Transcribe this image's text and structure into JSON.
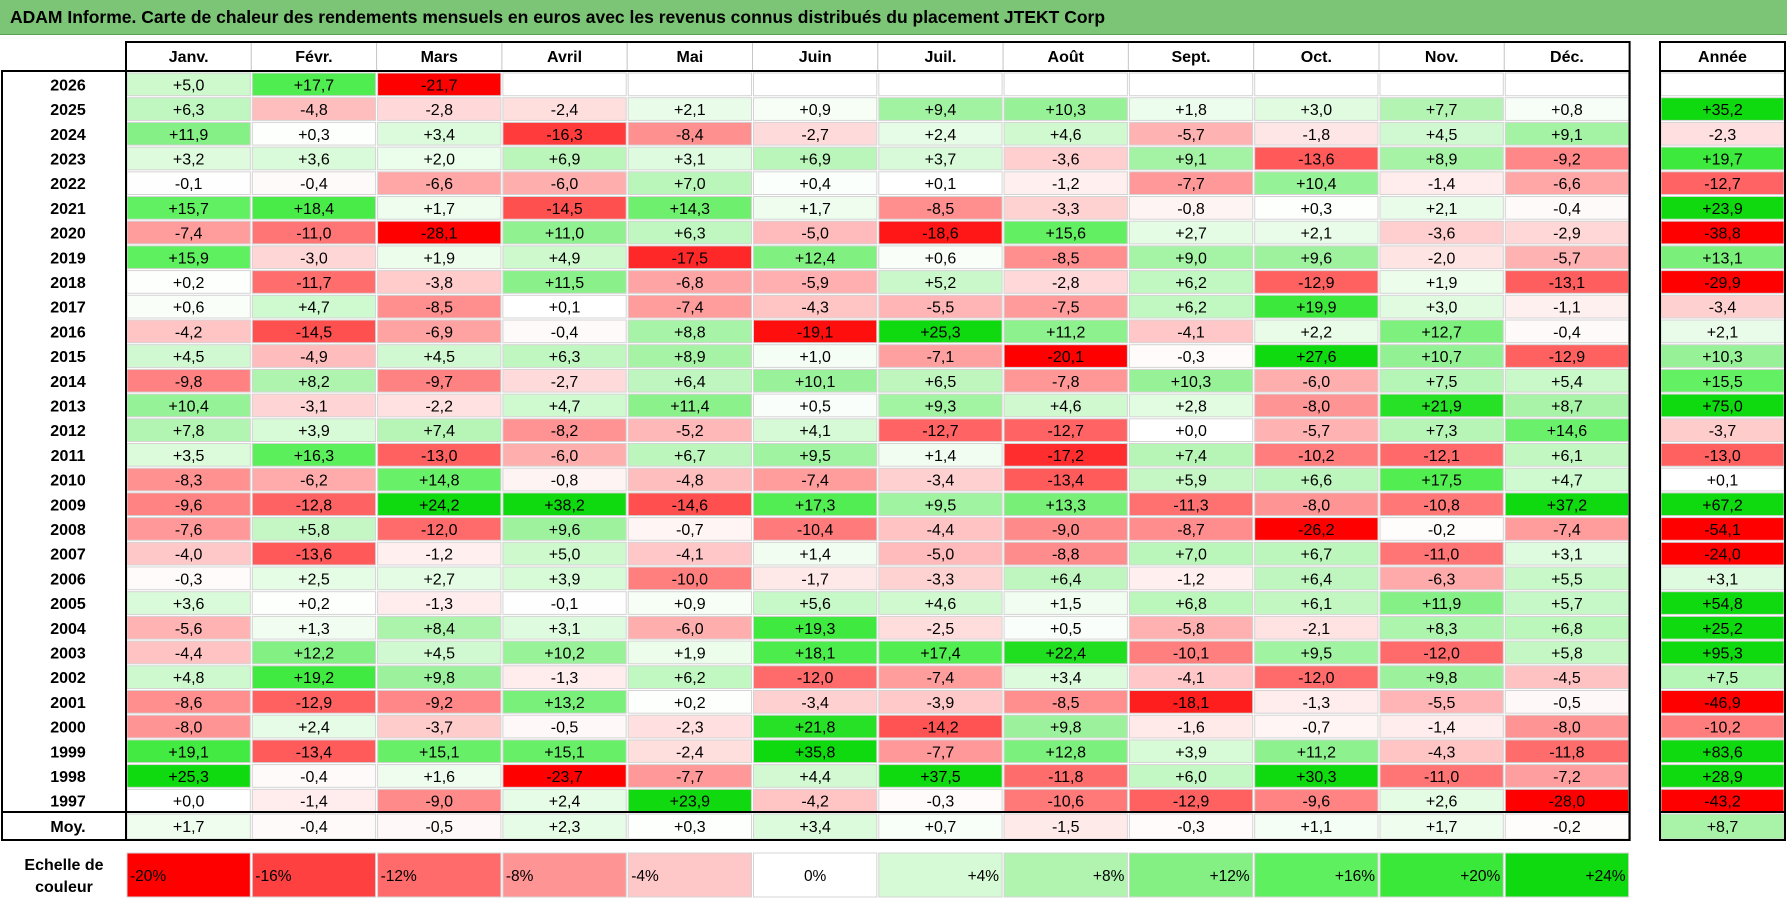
{
  "title": "ADAM Informe. Carte de chaleur des rendements mensuels en euros avec les revenus connus distribués du placement JTEKT Corp",
  "chart_data": {
    "type": "heatmap",
    "title": "ADAM Informe. Carte de chaleur des rendements mensuels en euros avec les revenus connus distribués du placement JTEKT Corp",
    "columns": [
      "Janv.",
      "Févr.",
      "Mars",
      "Avril",
      "Mai",
      "Juin",
      "Juil.",
      "Août",
      "Sept.",
      "Oct.",
      "Nov.",
      "Déc."
    ],
    "annual_header": "Année",
    "rows": [
      {
        "year": "2026",
        "values": [
          "+5,0",
          "+17,7",
          "-21,7",
          "",
          "",
          "",
          "",
          "",
          "",
          "",
          "",
          ""
        ],
        "annual": ""
      },
      {
        "year": "2025",
        "values": [
          "+6,3",
          "-4,8",
          "-2,8",
          "-2,4",
          "+2,1",
          "+0,9",
          "+9,4",
          "+10,3",
          "+1,8",
          "+3,0",
          "+7,7",
          "+0,8"
        ],
        "annual": "+35,2"
      },
      {
        "year": "2024",
        "values": [
          "+11,9",
          "+0,3",
          "+3,4",
          "-16,3",
          "-8,4",
          "-2,7",
          "+2,4",
          "+4,6",
          "-5,7",
          "-1,8",
          "+4,5",
          "+9,1"
        ],
        "annual": "-2,3"
      },
      {
        "year": "2023",
        "values": [
          "+3,2",
          "+3,6",
          "+2,0",
          "+6,9",
          "+3,1",
          "+6,9",
          "+3,7",
          "-3,6",
          "+9,1",
          "-13,6",
          "+8,9",
          "-9,2"
        ],
        "annual": "+19,7"
      },
      {
        "year": "2022",
        "values": [
          "-0,1",
          "-0,4",
          "-6,6",
          "-6,0",
          "+7,0",
          "+0,4",
          "+0,1",
          "-1,2",
          "-7,7",
          "+10,4",
          "-1,4",
          "-6,6"
        ],
        "annual": "-12,7"
      },
      {
        "year": "2021",
        "values": [
          "+15,7",
          "+18,4",
          "+1,7",
          "-14,5",
          "+14,3",
          "+1,7",
          "-8,5",
          "-3,3",
          "-0,8",
          "+0,3",
          "+2,1",
          "-0,4"
        ],
        "annual": "+23,9"
      },
      {
        "year": "2020",
        "values": [
          "-7,4",
          "-11,0",
          "-28,1",
          "+11,0",
          "+6,3",
          "-5,0",
          "-18,6",
          "+15,6",
          "+2,7",
          "+2,1",
          "-3,6",
          "-2,9"
        ],
        "annual": "-38,8"
      },
      {
        "year": "2019",
        "values": [
          "+15,9",
          "-3,0",
          "+1,9",
          "+4,9",
          "-17,5",
          "+12,4",
          "+0,6",
          "-8,5",
          "+9,0",
          "+9,6",
          "-2,0",
          "-5,7"
        ],
        "annual": "+13,1"
      },
      {
        "year": "2018",
        "values": [
          "+0,2",
          "-11,7",
          "-3,8",
          "+11,5",
          "-6,8",
          "-5,9",
          "+5,2",
          "-2,8",
          "+6,2",
          "-12,9",
          "+1,9",
          "-13,1"
        ],
        "annual": "-29,9"
      },
      {
        "year": "2017",
        "values": [
          "+0,6",
          "+4,7",
          "-8,5",
          "+0,1",
          "-7,4",
          "-4,3",
          "-5,5",
          "-7,5",
          "+6,2",
          "+19,9",
          "+3,0",
          "-1,1"
        ],
        "annual": "-3,4"
      },
      {
        "year": "2016",
        "values": [
          "-4,2",
          "-14,5",
          "-6,9",
          "-0,4",
          "+8,8",
          "-19,1",
          "+25,3",
          "+11,2",
          "-4,1",
          "+2,2",
          "+12,7",
          "-0,4"
        ],
        "annual": "+2,1"
      },
      {
        "year": "2015",
        "values": [
          "+4,5",
          "-4,9",
          "+4,5",
          "+6,3",
          "+8,9",
          "+1,0",
          "-7,1",
          "-20,1",
          "-0,3",
          "+27,6",
          "+10,7",
          "-12,9"
        ],
        "annual": "+10,3"
      },
      {
        "year": "2014",
        "values": [
          "-9,8",
          "+8,2",
          "-9,7",
          "-2,7",
          "+6,4",
          "+10,1",
          "+6,5",
          "-7,8",
          "+10,3",
          "-6,0",
          "+7,5",
          "+5,4"
        ],
        "annual": "+15,5"
      },
      {
        "year": "2013",
        "values": [
          "+10,4",
          "-3,1",
          "-2,2",
          "+4,7",
          "+11,4",
          "+0,5",
          "+9,3",
          "+4,6",
          "+2,8",
          "-8,0",
          "+21,9",
          "+8,7"
        ],
        "annual": "+75,0"
      },
      {
        "year": "2012",
        "values": [
          "+7,8",
          "+3,9",
          "+7,4",
          "-8,2",
          "-5,2",
          "+4,1",
          "-12,7",
          "-12,7",
          "+0,0",
          "-5,7",
          "+7,3",
          "+14,6"
        ],
        "annual": "-3,7"
      },
      {
        "year": "2011",
        "values": [
          "+3,5",
          "+16,3",
          "-13,0",
          "-6,0",
          "+6,7",
          "+9,5",
          "+1,4",
          "-17,2",
          "+7,4",
          "-10,2",
          "-12,1",
          "+6,1"
        ],
        "annual": "-13,0"
      },
      {
        "year": "2010",
        "values": [
          "-8,3",
          "-6,2",
          "+14,8",
          "-0,8",
          "-4,8",
          "-7,4",
          "-3,4",
          "-13,4",
          "+5,9",
          "+6,6",
          "+17,5",
          "+4,7"
        ],
        "annual": "+0,1"
      },
      {
        "year": "2009",
        "values": [
          "-9,6",
          "-12,8",
          "+24,2",
          "+38,2",
          "-14,6",
          "+17,3",
          "+9,5",
          "+13,3",
          "-11,3",
          "-8,0",
          "-10,8",
          "+37,2"
        ],
        "annual": "+67,2"
      },
      {
        "year": "2008",
        "values": [
          "-7,6",
          "+5,8",
          "-12,0",
          "+9,6",
          "-0,7",
          "-10,4",
          "-4,4",
          "-9,0",
          "-8,7",
          "-26,2",
          "-0,2",
          "-7,4"
        ],
        "annual": "-54,1"
      },
      {
        "year": "2007",
        "values": [
          "-4,0",
          "-13,6",
          "-1,2",
          "+5,0",
          "-4,1",
          "+1,4",
          "-5,0",
          "-8,8",
          "+7,0",
          "+6,7",
          "-11,0",
          "+3,1"
        ],
        "annual": "-24,0"
      },
      {
        "year": "2006",
        "values": [
          "-0,3",
          "+2,5",
          "+2,7",
          "+3,9",
          "-10,0",
          "-1,7",
          "-3,3",
          "+6,4",
          "-1,2",
          "+6,4",
          "-6,3",
          "+5,5"
        ],
        "annual": "+3,1"
      },
      {
        "year": "2005",
        "values": [
          "+3,6",
          "+0,2",
          "-1,3",
          "-0,1",
          "+0,9",
          "+5,6",
          "+4,6",
          "+1,5",
          "+6,8",
          "+6,1",
          "+11,9",
          "+5,7"
        ],
        "annual": "+54,8"
      },
      {
        "year": "2004",
        "values": [
          "-5,6",
          "+1,3",
          "+8,4",
          "+3,1",
          "-6,0",
          "+19,3",
          "-2,5",
          "+0,5",
          "-5,8",
          "-2,1",
          "+8,3",
          "+6,8"
        ],
        "annual": "+25,2"
      },
      {
        "year": "2003",
        "values": [
          "-4,4",
          "+12,2",
          "+4,5",
          "+10,2",
          "+1,9",
          "+18,1",
          "+17,4",
          "+22,4",
          "-10,1",
          "+9,5",
          "-12,0",
          "+5,8"
        ],
        "annual": "+95,3"
      },
      {
        "year": "2002",
        "values": [
          "+4,8",
          "+19,2",
          "+9,8",
          "-1,3",
          "+6,2",
          "-12,0",
          "-7,4",
          "+3,4",
          "-4,1",
          "-12,0",
          "+9,8",
          "-4,5"
        ],
        "annual": "+7,5"
      },
      {
        "year": "2001",
        "values": [
          "-8,6",
          "-12,9",
          "-9,2",
          "+13,2",
          "+0,2",
          "-3,4",
          "-3,9",
          "-8,5",
          "-18,1",
          "-1,3",
          "-5,5",
          "-0,5"
        ],
        "annual": "-46,9"
      },
      {
        "year": "2000",
        "values": [
          "-8,0",
          "+2,4",
          "-3,7",
          "-0,5",
          "-2,3",
          "+21,8",
          "-14,2",
          "+9,8",
          "-1,6",
          "-0,7",
          "-1,4",
          "-8,0"
        ],
        "annual": "-10,2"
      },
      {
        "year": "1999",
        "values": [
          "+19,1",
          "-13,4",
          "+15,1",
          "+15,1",
          "-2,4",
          "+35,8",
          "-7,7",
          "+12,8",
          "+3,9",
          "+11,2",
          "-4,3",
          "-11,8"
        ],
        "annual": "+83,6"
      },
      {
        "year": "1998",
        "values": [
          "+25,3",
          "-0,4",
          "+1,6",
          "-23,7",
          "-7,7",
          "+4,4",
          "+37,5",
          "-11,8",
          "+6,0",
          "+30,3",
          "-11,0",
          "-7,2"
        ],
        "annual": "+28,9"
      },
      {
        "year": "1997",
        "values": [
          "+0,0",
          "-1,4",
          "-9,0",
          "+2,4",
          "+23,9",
          "-4,2",
          "-0,3",
          "-10,6",
          "-12,9",
          "-9,6",
          "+2,6",
          "-28,0"
        ],
        "annual": "-43,2"
      }
    ],
    "average": {
      "label": "Moy.",
      "values": [
        "+1,7",
        "-0,4",
        "-0,5",
        "+2,3",
        "+0,3",
        "+3,4",
        "+0,7",
        "-1,5",
        "-0,3",
        "+1,1",
        "+1,7",
        "-0,2"
      ],
      "annual": "+8,7"
    },
    "color_scale": {
      "label_line1": "Echelle de",
      "label_line2": "couleur",
      "steps": [
        {
          "label": "-20%",
          "value": -20,
          "color": "#ff0000"
        },
        {
          "label": "-16%",
          "value": -16,
          "color": "#ff4040"
        },
        {
          "label": "-12%",
          "value": -12,
          "color": "#ff6a6a"
        },
        {
          "label": "-8%",
          "value": -8,
          "color": "#ff9494"
        },
        {
          "label": "-4%",
          "value": -4,
          "color": "#ffc8c8"
        },
        {
          "label": "0%",
          "value": 0,
          "color": "#ffffff"
        },
        {
          "label": "+4%",
          "value": 4,
          "color": "#d6fad6"
        },
        {
          "label": "+8%",
          "value": 8,
          "color": "#b0f4b0"
        },
        {
          "label": "+12%",
          "value": 12,
          "color": "#84f084"
        },
        {
          "label": "+16%",
          "value": 16,
          "color": "#5ef05e"
        },
        {
          "label": "+20%",
          "value": 20,
          "color": "#3ae83a"
        },
        {
          "label": "+24%",
          "value": 24,
          "color": "#0fd90f"
        }
      ]
    }
  }
}
